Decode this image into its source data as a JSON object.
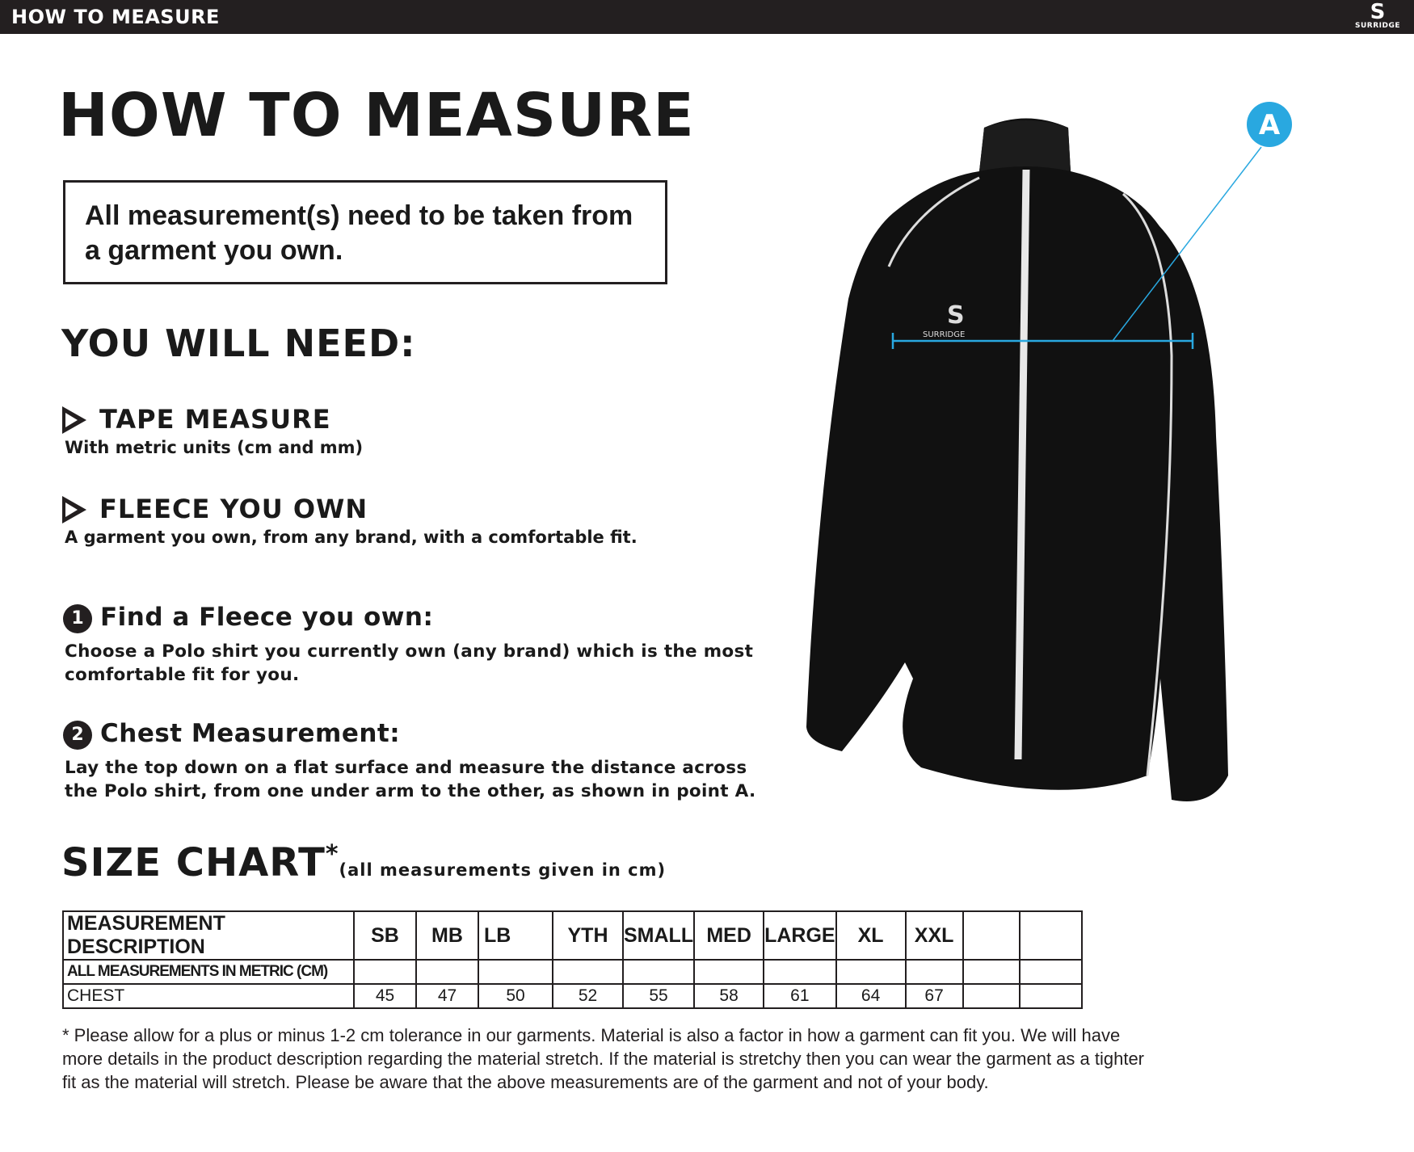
{
  "header": {
    "title": "HOW TO MEASURE",
    "logo_text": "SURRIDGE"
  },
  "page_title": "HOW TO MEASURE",
  "note": "All measurement(s) need to be taken from a garment you own.",
  "you_will_need": {
    "heading": "YOU WILL NEED:",
    "items": [
      {
        "title": "TAPE MEASURE",
        "subtitle": "With metric units (cm and mm)"
      },
      {
        "title": "FLEECE YOU OWN",
        "subtitle": "A garment you own, from any brand, with a comfortable fit."
      }
    ]
  },
  "steps": [
    {
      "number": "1",
      "title": "Find a Fleece you own:",
      "text": "Choose a Polo shirt you currently own (any brand) which is the most comfortable fit for you."
    },
    {
      "number": "2",
      "title": "Chest Measurement:",
      "text": "Lay the top down on a flat surface and measure the distance across the Polo shirt, from one under arm to the other, as shown in point A."
    }
  ],
  "image": {
    "point_label": "A",
    "logo_text": "SURRIDGE",
    "accent_color": "#29a8e0"
  },
  "size_chart": {
    "heading": "SIZE CHART",
    "asterisk": "*",
    "subheading": "(all measurements given in cm)",
    "columns": [
      "MEASUREMENT DESCRIPTION",
      "SB",
      "MB",
      "LB",
      "YTH",
      "SMALL",
      "MED",
      "LARGE",
      "XL",
      "XXL",
      "",
      ""
    ],
    "rows": [
      [
        "ALL MEASUREMENTS IN METRIC (CM)",
        "",
        "",
        "",
        "",
        "",
        "",
        "",
        "",
        "",
        "",
        ""
      ],
      [
        "CHEST",
        "45",
        "47",
        "50",
        "52",
        "55",
        "58",
        "61",
        "64",
        "67",
        "",
        ""
      ]
    ]
  },
  "footnote": "* Please allow for a plus or minus 1-2 cm tolerance in our garments. Material is also a factor in how a garment can fit you. We will have more details in the product description regarding the material stretch.  If the material is stretchy then you can wear the garment as a tighter fit as the material will stretch.  Please be aware that the above measurements are of the garment and not of your body."
}
